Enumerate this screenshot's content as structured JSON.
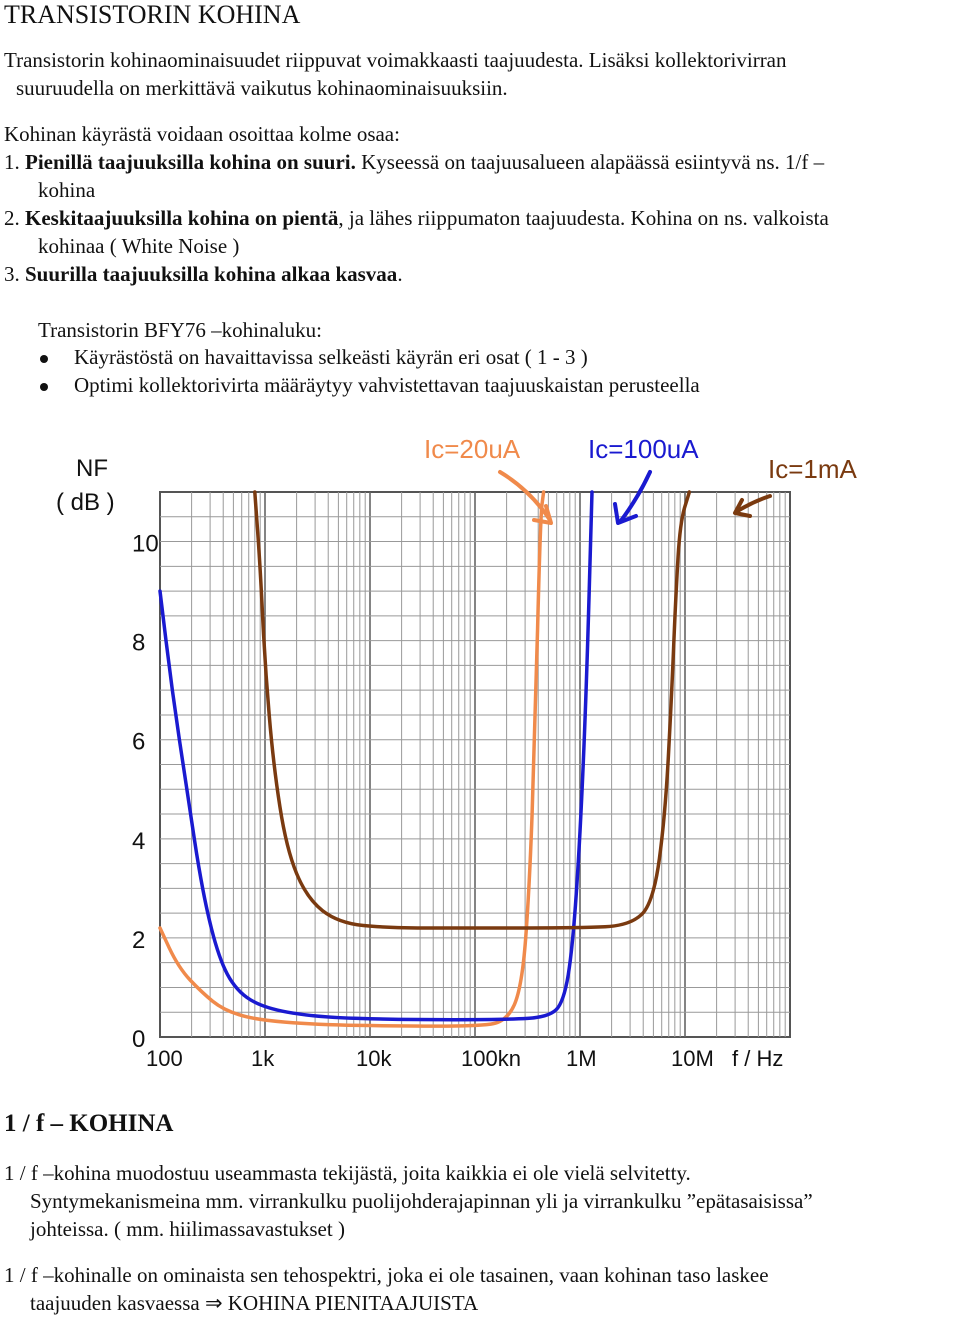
{
  "title": "TRANSISTORIN KOHINA",
  "intro": {
    "line1": "Transistorin kohinaominaisuudet riippuvat voimakkaasti taajuudesta. Lisäksi kollektorivirran",
    "line2": "suuruudella on merkittävä vaikutus kohinaominaisuuksiin."
  },
  "curve_intro": "Kohinan käyrästä voidaan osoittaa kolme osaa:",
  "items": [
    {
      "num": "1.",
      "bold": "Pienillä taajuuksilla kohina on suuri.",
      "rest": " Kyseessä on taajuusalueen alapäässä esiintyvä ns. 1/f –",
      "cont": "kohina"
    },
    {
      "num": "2.",
      "bold": "Keskitaajuuksilla kohina on pientä",
      "rest": ", ja lähes riippumaton taajuudesta. Kohina on ns. valkoista",
      "cont": "kohinaa ( White Noise )"
    },
    {
      "num": "3.",
      "bold": "Suurilla taajuuksilla kohina alkaa kasvaa",
      "rest": "."
    }
  ],
  "bfy_heading": "Transistorin BFY76 –kohinaluku:",
  "bullets": [
    "Käyrästöstä on havaittavissa selkeästi käyrän eri osat ( 1 - 3 )",
    "Optimi kollektorivirta määräytyy vahvistettavan taajuuskaistan perusteella"
  ],
  "chart_data": {
    "type": "line",
    "ylabel_line1": "NF",
    "ylabel_line2": "( dB )",
    "xlabel": "f / Hz",
    "x_scale": "log",
    "y_ticks": [
      "0",
      "2",
      "4",
      "6",
      "8",
      "10"
    ],
    "x_ticks": [
      "100",
      "1k",
      "10k",
      "100kn",
      "1M",
      "10M"
    ],
    "ylim": [
      0,
      11
    ],
    "grid": true,
    "colors": {
      "Ic=20uA": "#f08a4b",
      "Ic=100uA": "#1a1ad0",
      "Ic=1mA": "#7a3a10"
    },
    "series": [
      {
        "name": "Ic=20uA",
        "points": [
          [
            100,
            2.2
          ],
          [
            150,
            1.4
          ],
          [
            250,
            0.9
          ],
          [
            400,
            0.55
          ],
          [
            800,
            0.35
          ],
          [
            3000,
            0.25
          ],
          [
            20000,
            0.22
          ],
          [
            100000,
            0.22
          ],
          [
            200000,
            0.3
          ],
          [
            280000,
            1.0
          ],
          [
            330000,
            3.0
          ],
          [
            370000,
            6.0
          ],
          [
            420000,
            10.5
          ],
          [
            450000,
            11.0
          ]
        ]
      },
      {
        "name": "Ic=100uA",
        "points": [
          [
            100,
            9.0
          ],
          [
            130,
            7.0
          ],
          [
            180,
            5.0
          ],
          [
            250,
            3.0
          ],
          [
            350,
            1.7
          ],
          [
            500,
            1.0
          ],
          [
            900,
            0.6
          ],
          [
            3000,
            0.4
          ],
          [
            20000,
            0.35
          ],
          [
            200000,
            0.35
          ],
          [
            500000,
            0.4
          ],
          [
            700000,
            0.7
          ],
          [
            850000,
            1.8
          ],
          [
            1000000,
            4.0
          ],
          [
            1150000,
            7.0
          ],
          [
            1300000,
            11.0
          ]
        ]
      },
      {
        "name": "Ic=1mA",
        "points": [
          [
            800,
            11.0
          ],
          [
            900,
            9.5
          ],
          [
            1000,
            7.5
          ],
          [
            1200,
            5.5
          ],
          [
            1600,
            3.8
          ],
          [
            2500,
            2.8
          ],
          [
            5000,
            2.3
          ],
          [
            15000,
            2.2
          ],
          [
            100000,
            2.2
          ],
          [
            1000000,
            2.2
          ],
          [
            3000000,
            2.25
          ],
          [
            5000000,
            2.7
          ],
          [
            6500000,
            4.5
          ],
          [
            7500000,
            7.0
          ],
          [
            8200000,
            9.0
          ],
          [
            9000000,
            10.4
          ],
          [
            11000000,
            11.0
          ]
        ]
      }
    ]
  },
  "section2": {
    "heading": "1 / f – KOHINA",
    "p1_line1": "1 / f –kohina muodostuu useammasta tekijästä, joita kaikkia ei ole vielä selvitetty.",
    "p1_line2": "Syntymekanismeina mm. virrankulku puolijohderajapinnan yli ja virrankulku ”epätasaisissa”",
    "p1_line3": "johteissa. ( mm. hiilimassavastukset )",
    "p2_line1": "1 / f –kohinalle on ominaista sen tehospektri, joka ei ole tasainen, vaan kohinan taso laskee",
    "p2_line2": "taajuuden kasvaessa",
    "p2_arrow": "⇒",
    "p2_tail": "KOHINA PIENITAAJUISTA"
  }
}
